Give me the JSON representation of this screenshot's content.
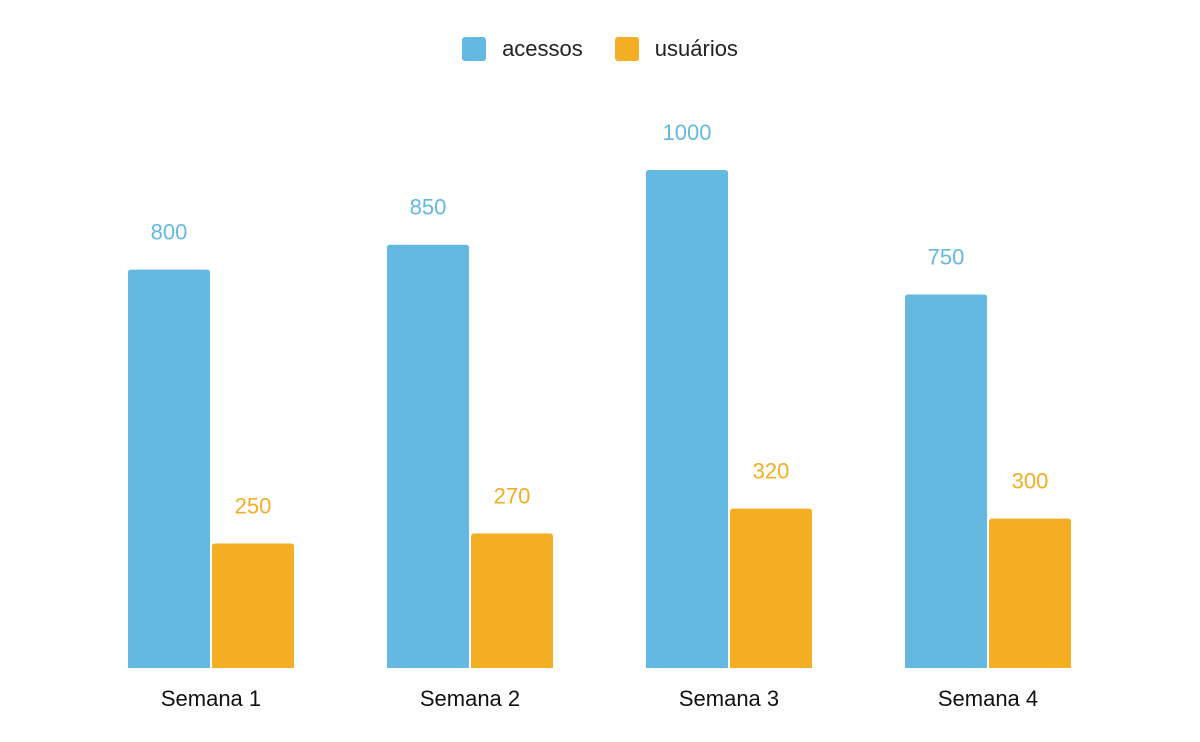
{
  "chart_data": {
    "type": "bar",
    "categories": [
      "Semana 1",
      "Semana 2",
      "Semana 3",
      "Semana 4"
    ],
    "series": [
      {
        "name": "acessos",
        "values": [
          800,
          850,
          1000,
          750
        ],
        "color": "#63b9e1"
      },
      {
        "name": "usuários",
        "values": [
          250,
          270,
          320,
          300
        ],
        "color": "#f3ae24"
      }
    ],
    "title": "",
    "xlabel": "",
    "ylabel": "",
    "ylim": [
      0,
      1000
    ],
    "legend": "top-center",
    "grid": false,
    "data_labels": true
  }
}
